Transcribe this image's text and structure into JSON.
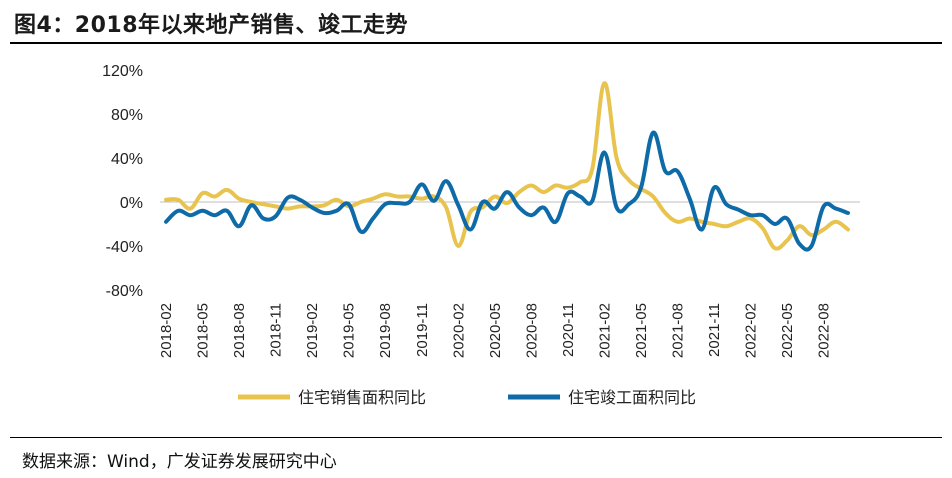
{
  "title": "图4：2018年以来地产销售、竣工走势",
  "source": "数据来源：Wind，广发证券发展研究中心",
  "colors": {
    "series_sales": "#E8C44E",
    "series_completion": "#0E6BA8",
    "axis": "#bfbfbf"
  },
  "chart_data": {
    "type": "line",
    "ylim": [
      -80,
      120
    ],
    "yticks": [
      "120%",
      "80%",
      "40%",
      "0%",
      "-40%",
      "-80%"
    ],
    "yticks_values": [
      120,
      80,
      40,
      0,
      -40,
      -80
    ],
    "xticks": [
      "2018-02",
      "2018-05",
      "2018-08",
      "2018-11",
      "2019-02",
      "2019-05",
      "2019-08",
      "2019-11",
      "2020-02",
      "2020-05",
      "2020-08",
      "2020-11",
      "2021-02",
      "2021-05",
      "2021-08",
      "2021-11",
      "2022-02",
      "2022-05",
      "2022-08"
    ],
    "x": [
      "2018-02",
      "2018-03",
      "2018-04",
      "2018-05",
      "2018-06",
      "2018-07",
      "2018-08",
      "2018-09",
      "2018-10",
      "2018-11",
      "2018-12",
      "2019-01",
      "2019-02",
      "2019-03",
      "2019-04",
      "2019-05",
      "2019-06",
      "2019-07",
      "2019-08",
      "2019-09",
      "2019-10",
      "2019-11",
      "2019-12",
      "2020-01",
      "2020-02",
      "2020-03",
      "2020-04",
      "2020-05",
      "2020-06",
      "2020-07",
      "2020-08",
      "2020-09",
      "2020-10",
      "2020-11",
      "2020-12",
      "2021-01",
      "2021-02",
      "2021-03",
      "2021-04",
      "2021-05",
      "2021-06",
      "2021-07",
      "2021-08",
      "2021-09",
      "2021-10",
      "2021-11",
      "2021-12",
      "2022-01",
      "2022-02",
      "2022-03",
      "2022-04",
      "2022-05",
      "2022-06",
      "2022-07",
      "2022-08",
      "2022-09",
      "2022-10"
    ],
    "series": [
      {
        "name": "住宅销售面积同比",
        "values": [
          2,
          2,
          -6,
          8,
          5,
          11,
          3,
          0,
          -2,
          -4,
          -6,
          -4,
          -4,
          -3,
          2,
          -4,
          0,
          3,
          7,
          5,
          5,
          3,
          5,
          -5,
          -40,
          -9,
          -5,
          5,
          -1,
          9,
          15,
          9,
          15,
          13,
          18,
          30,
          108,
          40,
          20,
          12,
          5,
          -10,
          -18,
          -15,
          -18,
          -20,
          -22,
          -18,
          -15,
          -24,
          -42,
          -35,
          -22,
          -30,
          -25,
          -18,
          -25
        ]
      },
      {
        "name": "住宅竣工面积同比",
        "values": [
          -18,
          -8,
          -12,
          -8,
          -12,
          -8,
          -22,
          -3,
          -15,
          -13,
          4,
          2,
          -5,
          -10,
          -8,
          -2,
          -27,
          -15,
          -2,
          -1,
          0,
          16,
          1,
          19,
          -3,
          -25,
          0,
          -6,
          9,
          -5,
          -12,
          -5,
          -18,
          8,
          5,
          1,
          45,
          -5,
          -2,
          13,
          63,
          28,
          28,
          3,
          -25,
          13,
          -2,
          -7,
          -12,
          -12,
          -20,
          -15,
          -38,
          -40,
          -4,
          -6,
          -10
        ]
      }
    ],
    "legend_position": "bottom",
    "grid": false
  }
}
